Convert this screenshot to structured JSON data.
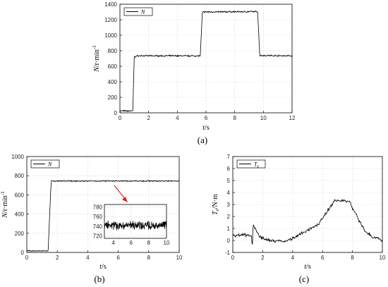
{
  "chart_data": [
    {
      "type": "line",
      "panel_label": "(a)",
      "xlabel": "t/s",
      "ylabel": "N/r·min⁻¹",
      "xlim": [
        0,
        12
      ],
      "ylim": [
        0,
        1400
      ],
      "xticks": [
        0,
        2,
        4,
        6,
        8,
        10,
        12
      ],
      "yticks": [
        0,
        200,
        400,
        600,
        800,
        1000,
        1200,
        1400
      ],
      "grid": true,
      "legend_position": "top-left",
      "series": [
        {
          "name": "N",
          "color": "#000000",
          "noise": 12,
          "points": [
            [
              0,
              25
            ],
            [
              0.9,
              25
            ],
            [
              0.95,
              400
            ],
            [
              1.0,
              720
            ],
            [
              1.2,
              735
            ],
            [
              5.6,
              735
            ],
            [
              5.75,
              1300
            ],
            [
              9.6,
              1305
            ],
            [
              9.75,
              740
            ],
            [
              12,
              735
            ]
          ]
        }
      ]
    },
    {
      "type": "line",
      "panel_label": "(b)",
      "xlabel": "t/s",
      "ylabel": "N/r·min⁻¹",
      "xlim": [
        0,
        10
      ],
      "ylim": [
        0,
        1000
      ],
      "xticks": [
        0,
        2,
        4,
        6,
        8,
        10
      ],
      "yticks": [
        0,
        200,
        400,
        600,
        800,
        1000
      ],
      "grid": true,
      "legend_position": "top-left",
      "series": [
        {
          "name": "N",
          "color": "#000000",
          "noise": 8,
          "points": [
            [
              0,
              15
            ],
            [
              1.4,
              15
            ],
            [
              1.5,
              400
            ],
            [
              1.6,
              745
            ],
            [
              10,
              745
            ]
          ]
        }
      ],
      "inset": {
        "xlim": [
          3,
          10
        ],
        "ylim": [
          715,
          785
        ],
        "xticks": [
          4,
          6,
          8,
          10
        ],
        "yticks": [
          720,
          740,
          760,
          780
        ],
        "series": [
          {
            "color": "#000000",
            "noise": 10,
            "points": [
              [
                3,
                742
              ],
              [
                10,
                742
              ]
            ]
          }
        ],
        "arrow_color": "#e0201a"
      }
    },
    {
      "type": "line",
      "panel_label": "(c)",
      "xlabel": "t/s",
      "ylabel": "T_e/N·m",
      "xlim": [
        0,
        10
      ],
      "ylim": [
        -1,
        7
      ],
      "xticks": [
        0,
        2,
        4,
        6,
        8,
        10
      ],
      "yticks": [
        -1,
        0,
        1,
        2,
        3,
        4,
        5,
        6,
        7
      ],
      "grid": true,
      "legend_position": "top-left",
      "series": [
        {
          "name": "T_e",
          "color": "#000000",
          "noise": 0.18,
          "points": [
            [
              0,
              0.45
            ],
            [
              1.25,
              0.45
            ],
            [
              1.3,
              -0.7
            ],
            [
              1.35,
              1.2
            ],
            [
              1.5,
              1.0
            ],
            [
              1.8,
              0.3
            ],
            [
              2.5,
              0.0
            ],
            [
              3.5,
              -0.1
            ],
            [
              4.3,
              0.4
            ],
            [
              5.0,
              0.9
            ],
            [
              5.7,
              1.3
            ],
            [
              6.3,
              2.4
            ],
            [
              6.8,
              3.3
            ],
            [
              7.3,
              3.4
            ],
            [
              7.8,
              3.2
            ],
            [
              8.3,
              2.0
            ],
            [
              8.8,
              0.9
            ],
            [
              9.3,
              0.3
            ],
            [
              10,
              0.0
            ]
          ]
        }
      ]
    }
  ]
}
